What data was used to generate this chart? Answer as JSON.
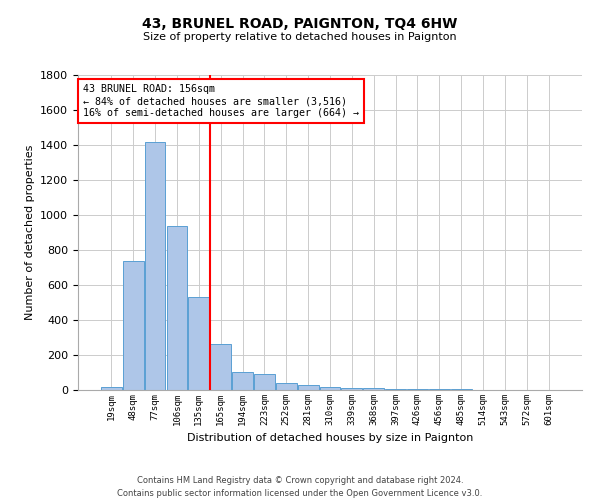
{
  "title": "43, BRUNEL ROAD, PAIGNTON, TQ4 6HW",
  "subtitle": "Size of property relative to detached houses in Paignton",
  "xlabel": "Distribution of detached houses by size in Paignton",
  "ylabel": "Number of detached properties",
  "footer_line1": "Contains HM Land Registry data © Crown copyright and database right 2024.",
  "footer_line2": "Contains public sector information licensed under the Open Government Licence v3.0.",
  "bar_labels": [
    "19sqm",
    "48sqm",
    "77sqm",
    "106sqm",
    "135sqm",
    "165sqm",
    "194sqm",
    "223sqm",
    "252sqm",
    "281sqm",
    "310sqm",
    "339sqm",
    "368sqm",
    "397sqm",
    "426sqm",
    "456sqm",
    "485sqm",
    "514sqm",
    "543sqm",
    "572sqm",
    "601sqm"
  ],
  "bar_values": [
    20,
    740,
    1420,
    940,
    530,
    265,
    105,
    90,
    38,
    27,
    16,
    12,
    10,
    8,
    5,
    4,
    3,
    2,
    2,
    1,
    2
  ],
  "bar_color": "#aec6e8",
  "bar_edgecolor": "#5a9fd4",
  "annotation_text": "43 BRUNEL ROAD: 156sqm\n← 84% of detached houses are smaller (3,516)\n16% of semi-detached houses are larger (664) →",
  "vline_x": 4.5,
  "vline_color": "red",
  "box_color": "red",
  "background_color": "#ffffff",
  "grid_color": "#cccccc",
  "ylim": [
    0,
    1800
  ],
  "yticks": [
    0,
    200,
    400,
    600,
    800,
    1000,
    1200,
    1400,
    1600,
    1800
  ]
}
